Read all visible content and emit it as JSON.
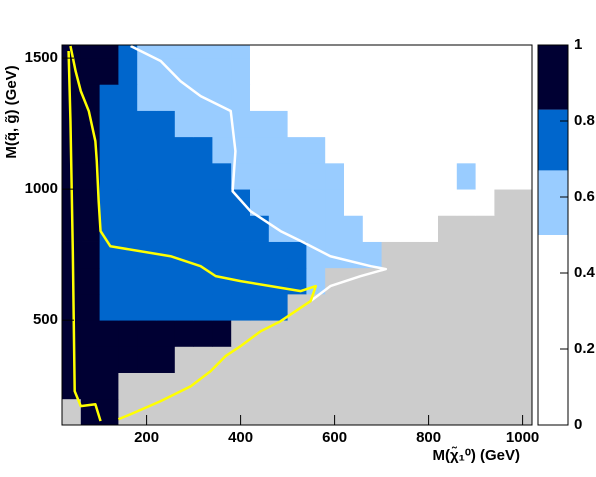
{
  "chart_data": {
    "type": "heatmap",
    "xlabel": "M(χ̃₁⁰) (GeV)",
    "ylabel": "M(q̃, g̃) (GeV)",
    "xlim": [
      20,
      1020
    ],
    "ylim": [
      100,
      1550
    ],
    "zlim": [
      0,
      1
    ],
    "xticks": [
      200,
      400,
      600,
      800,
      1000
    ],
    "yticks": [
      500,
      1000,
      1500
    ],
    "zticks": [
      0,
      0.2,
      0.4,
      0.6,
      0.8,
      1
    ],
    "xbins": [
      20,
      60,
      100,
      140,
      180,
      220,
      260,
      300,
      340,
      380,
      420,
      460,
      500,
      540,
      580,
      620,
      660,
      700,
      740,
      780,
      820,
      860,
      900,
      940,
      980,
      1020
    ],
    "ybins": [
      100,
      200,
      300,
      400,
      500,
      600,
      700,
      800,
      900,
      1000,
      1100,
      1200,
      1300,
      1400,
      1500,
      1550
    ],
    "color_levels": [
      0,
      0.5,
      0.67,
      0.83,
      1
    ],
    "colors": [
      "#ffffff",
      "#99ccff",
      "#0066cc",
      "#000033"
    ],
    "null_color": "#cccccc",
    "z": [
      [
        null,
        1,
        1,
        null,
        null,
        null,
        null,
        null,
        null,
        null,
        null,
        null,
        null,
        null,
        null,
        null,
        null,
        null,
        null,
        null,
        null,
        null,
        null,
        null,
        null
      ],
      [
        1,
        1,
        1,
        null,
        null,
        null,
        null,
        null,
        null,
        null,
        null,
        null,
        null,
        null,
        null,
        null,
        null,
        null,
        null,
        null,
        null,
        null,
        null,
        null,
        null
      ],
      [
        1,
        1,
        1,
        1,
        1,
        1,
        null,
        null,
        null,
        null,
        null,
        null,
        null,
        null,
        null,
        null,
        null,
        null,
        null,
        null,
        null,
        null,
        null,
        null,
        null
      ],
      [
        1,
        1,
        1,
        1,
        1,
        1,
        1,
        1,
        1,
        null,
        null,
        null,
        null,
        null,
        null,
        null,
        null,
        null,
        null,
        null,
        null,
        null,
        null,
        null,
        null
      ],
      [
        1,
        1,
        0.75,
        0.75,
        0.75,
        0.75,
        0.75,
        0.75,
        0.75,
        0.75,
        0.75,
        0.75,
        null,
        null,
        null,
        null,
        null,
        null,
        null,
        null,
        null,
        null,
        null,
        null,
        null
      ],
      [
        1,
        1,
        0.75,
        0.75,
        0.75,
        0.75,
        0.75,
        0.75,
        0.75,
        0.75,
        0.75,
        0.75,
        0.75,
        0.6,
        null,
        null,
        null,
        null,
        null,
        null,
        null,
        null,
        null,
        null,
        null
      ],
      [
        1,
        1,
        0.75,
        0.75,
        0.75,
        0.75,
        0.75,
        0.75,
        0.75,
        0.75,
        0.75,
        0.75,
        0.75,
        0.6,
        0.6,
        0.6,
        0.6,
        null,
        null,
        null,
        null,
        null,
        null,
        null,
        null
      ],
      [
        1,
        1,
        0.75,
        0.75,
        0.75,
        0.75,
        0.75,
        0.75,
        0.75,
        0.75,
        0.75,
        0.6,
        0.6,
        0.6,
        0.6,
        0.6,
        0.3,
        0.3,
        0.3,
        0.3,
        null,
        null,
        null,
        null,
        null
      ],
      [
        1,
        1,
        0.75,
        0.75,
        0.75,
        0.75,
        0.75,
        0.75,
        0.75,
        0.75,
        0.6,
        0.6,
        0.6,
        0.6,
        0.6,
        0.3,
        0.3,
        0.3,
        0.3,
        0.3,
        0.3,
        0.3,
        0.3,
        null,
        null
      ],
      [
        1,
        1,
        0.75,
        0.75,
        0.75,
        0.75,
        0.75,
        0.75,
        0.75,
        0.6,
        0.6,
        0.6,
        0.6,
        0.6,
        0.6,
        0.3,
        0.3,
        0.3,
        0.3,
        0.3,
        0.3,
        0.6,
        0.3,
        0.3,
        0.3
      ],
      [
        1,
        1,
        0.75,
        0.75,
        0.75,
        0.75,
        0.75,
        0.75,
        0.6,
        0.6,
        0.6,
        0.6,
        0.6,
        0.6,
        0.3,
        0.3,
        0.3,
        0.3,
        0.3,
        0.3,
        0.3,
        0.3,
        0.3,
        0.3,
        0.3
      ],
      [
        1,
        1,
        0.75,
        0.75,
        0.75,
        0.75,
        0.6,
        0.6,
        0.6,
        0.6,
        0.6,
        0.6,
        0.3,
        0.3,
        0.3,
        0.3,
        0.3,
        0.3,
        0.3,
        0.3,
        0.3,
        0.3,
        0.3,
        0.3,
        0.3
      ],
      [
        1,
        1,
        0.75,
        0.75,
        0.6,
        0.6,
        0.6,
        0.6,
        0.6,
        0.6,
        0.3,
        0.3,
        0.3,
        0.3,
        0.3,
        0.3,
        0.3,
        0.3,
        0.3,
        0.3,
        0.3,
        0.3,
        0.3,
        0.3,
        0.3
      ],
      [
        1,
        1,
        1,
        0.75,
        0.6,
        0.6,
        0.6,
        0.6,
        0.6,
        0.6,
        0.3,
        0.3,
        0.3,
        0.3,
        0.3,
        0.3,
        0.3,
        0.3,
        0.3,
        0.3,
        0.3,
        0.3,
        0.3,
        0.3,
        0.3
      ],
      [
        1,
        1,
        1,
        0.75,
        0.6,
        0.6,
        0.6,
        0.6,
        0.6,
        0.6,
        0.3,
        0.3,
        0.3,
        0.3,
        0.3,
        0.3,
        0.3,
        0.3,
        0.3,
        0.3,
        0.3,
        0.3,
        0.3,
        0.3,
        0.3
      ]
    ],
    "contours": [
      {
        "color": "#ffffff",
        "x": [
          166,
          230,
          272,
          315,
          379,
          389,
          383,
          421,
          485,
          528,
          591,
          677,
          709,
          655,
          591,
          549
        ],
        "y": [
          1546,
          1489,
          1412,
          1355,
          1298,
          1145,
          992,
          916,
          840,
          802,
          744,
          706,
          695,
          668,
          630,
          573
        ]
      },
      {
        "color": "#ffff00",
        "x": [
          38,
          49,
          60,
          77,
          91,
          94,
          98,
          102,
          123,
          187,
          251,
          315,
          347,
          400,
          464,
          528,
          560,
          549,
          485,
          443,
          400,
          368,
          336,
          294,
          230,
          166,
          140
        ],
        "y": [
          1546,
          1450,
          1374,
          1298,
          1183,
          1107,
          954,
          840,
          782,
          763,
          744,
          706,
          668,
          649,
          630,
          611,
          630,
          573,
          496,
          458,
          401,
          363,
          305,
          248,
          191,
          141,
          122
        ]
      },
      {
        "color": "#ffff00",
        "x": [
          34,
          38,
          43,
          47,
          60,
          91,
          102
        ],
        "y": [
          1527,
          1260,
          763,
          229,
          172,
          179,
          115
        ]
      }
    ]
  }
}
